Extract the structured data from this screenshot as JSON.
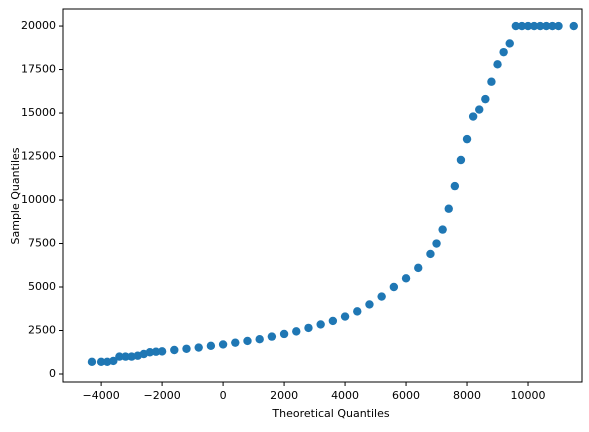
{
  "chart_data": {
    "type": "scatter",
    "xlabel": "Theoretical Quantiles",
    "ylabel": "Sample Quantiles",
    "color": "#1f77b4",
    "x": [
      -4300,
      -4000,
      -3800,
      -3600,
      -3400,
      -3200,
      -3000,
      -2800,
      -2600,
      -2400,
      -2200,
      -2000,
      -1600,
      -1200,
      -800,
      -400,
      0,
      400,
      800,
      1200,
      1600,
      2000,
      2400,
      2800,
      3200,
      3600,
      4000,
      4400,
      4800,
      5200,
      5600,
      6000,
      6400,
      6800,
      7000,
      7200,
      7400,
      7600,
      7800,
      8000,
      8200,
      8400,
      8600,
      8800,
      9000,
      9200,
      9400,
      9600,
      9800,
      10000,
      10200,
      10400,
      10600,
      10800,
      11000,
      11500
    ],
    "values": [
      700,
      700,
      700,
      750,
      1000,
      1000,
      1000,
      1050,
      1150,
      1250,
      1280,
      1300,
      1380,
      1450,
      1520,
      1620,
      1700,
      1800,
      1900,
      2000,
      2150,
      2300,
      2450,
      2650,
      2850,
      3050,
      3300,
      3600,
      4000,
      4450,
      5000,
      5500,
      6100,
      6900,
      7500,
      8300,
      9500,
      10800,
      12300,
      13500,
      14800,
      15200,
      15800,
      16800,
      17800,
      18500,
      19000,
      20000,
      20000,
      20000,
      20000,
      20000,
      20000,
      20000,
      20000,
      20000
    ],
    "xlim": [
      -5250,
      11770
    ],
    "ylim": [
      -460,
      20980
    ],
    "xticks": [
      {
        "value": -4000,
        "label": "−4000"
      },
      {
        "value": -2000,
        "label": "−2000"
      },
      0,
      2000,
      4000,
      6000,
      8000,
      10000
    ],
    "yticks": [
      0,
      2500,
      5000,
      7500,
      10000,
      12500,
      15000,
      17500,
      20000
    ]
  }
}
